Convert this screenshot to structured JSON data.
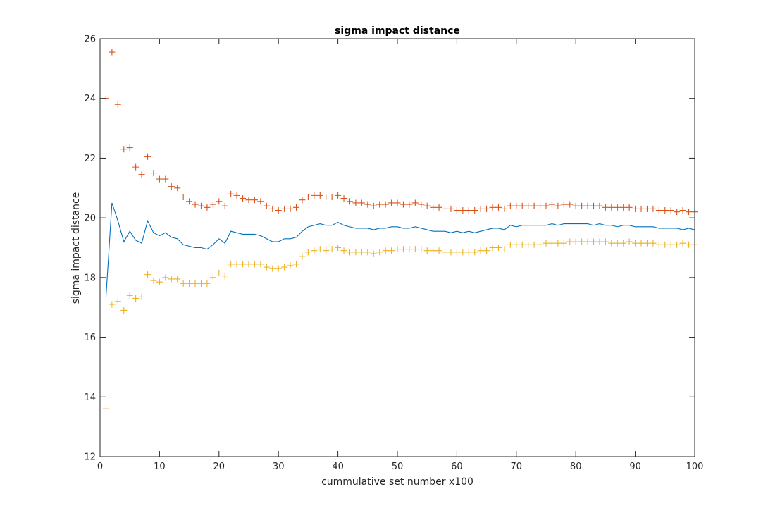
{
  "chart_data": {
    "type": "line",
    "title": "sigma impact distance",
    "xlabel": "cummulative set number x100",
    "ylabel": "sigma impact distance",
    "xlim": [
      0,
      100
    ],
    "ylim": [
      12,
      26
    ],
    "xticks": [
      0,
      10,
      20,
      30,
      40,
      50,
      60,
      70,
      80,
      90,
      100
    ],
    "yticks": [
      12,
      14,
      16,
      18,
      20,
      22,
      24,
      26
    ],
    "grid": false,
    "legend": "none",
    "series": [
      {
        "style": "line",
        "color": "#0072BD",
        "x": [
          1,
          2,
          3,
          4,
          5,
          6,
          7,
          8,
          9,
          10,
          11,
          12,
          13,
          14,
          15,
          16,
          17,
          18,
          19,
          20,
          21,
          22,
          23,
          24,
          25,
          26,
          27,
          28,
          29,
          30,
          31,
          32,
          33,
          34,
          35,
          36,
          37,
          38,
          39,
          40,
          41,
          42,
          43,
          44,
          45,
          46,
          47,
          48,
          49,
          50,
          51,
          52,
          53,
          54,
          55,
          56,
          57,
          58,
          59,
          60,
          61,
          62,
          63,
          64,
          65,
          66,
          67,
          68,
          69,
          70,
          71,
          72,
          73,
          74,
          75,
          76,
          77,
          78,
          79,
          80,
          81,
          82,
          83,
          84,
          85,
          86,
          87,
          88,
          89,
          90,
          91,
          92,
          93,
          94,
          95,
          96,
          97,
          98,
          99,
          100
        ],
        "values": [
          17.35,
          20.5,
          19.9,
          19.2,
          19.55,
          19.25,
          19.15,
          19.9,
          19.5,
          19.4,
          19.5,
          19.35,
          19.3,
          19.1,
          19.05,
          19.0,
          19.0,
          18.95,
          19.1,
          19.3,
          19.15,
          19.55,
          19.5,
          19.45,
          19.45,
          19.45,
          19.4,
          19.3,
          19.2,
          19.2,
          19.3,
          19.3,
          19.35,
          19.55,
          19.7,
          19.75,
          19.8,
          19.75,
          19.75,
          19.85,
          19.75,
          19.7,
          19.65,
          19.65,
          19.65,
          19.6,
          19.65,
          19.65,
          19.7,
          19.7,
          19.65,
          19.65,
          19.7,
          19.65,
          19.6,
          19.55,
          19.55,
          19.55,
          19.5,
          19.55,
          19.5,
          19.55,
          19.5,
          19.55,
          19.6,
          19.65,
          19.65,
          19.6,
          19.75,
          19.7,
          19.75,
          19.75,
          19.75,
          19.75,
          19.75,
          19.8,
          19.75,
          19.8,
          19.8,
          19.8,
          19.8,
          19.8,
          19.75,
          19.8,
          19.75,
          19.75,
          19.7,
          19.75,
          19.75,
          19.7,
          19.7,
          19.7,
          19.7,
          19.65,
          19.65,
          19.65,
          19.65,
          19.6,
          19.65,
          19.6
        ]
      },
      {
        "style": "plus",
        "color": "#D95319",
        "x": [
          1,
          2,
          3,
          4,
          5,
          6,
          7,
          8,
          9,
          10,
          11,
          12,
          13,
          14,
          15,
          16,
          17,
          18,
          19,
          20,
          21,
          22,
          23,
          24,
          25,
          26,
          27,
          28,
          29,
          30,
          31,
          32,
          33,
          34,
          35,
          36,
          37,
          38,
          39,
          40,
          41,
          42,
          43,
          44,
          45,
          46,
          47,
          48,
          49,
          50,
          51,
          52,
          53,
          54,
          55,
          56,
          57,
          58,
          59,
          60,
          61,
          62,
          63,
          64,
          65,
          66,
          67,
          68,
          69,
          70,
          71,
          72,
          73,
          74,
          75,
          76,
          77,
          78,
          79,
          80,
          81,
          82,
          83,
          84,
          85,
          86,
          87,
          88,
          89,
          90,
          91,
          92,
          93,
          94,
          95,
          96,
          97,
          98,
          99,
          100
        ],
        "values": [
          24.0,
          25.55,
          23.8,
          22.3,
          22.35,
          21.7,
          21.45,
          22.05,
          21.5,
          21.3,
          21.3,
          21.05,
          21.0,
          20.7,
          20.55,
          20.45,
          20.4,
          20.35,
          20.45,
          20.55,
          20.4,
          20.8,
          20.75,
          20.65,
          20.6,
          20.6,
          20.55,
          20.4,
          20.3,
          20.25,
          20.3,
          20.3,
          20.35,
          20.6,
          20.7,
          20.75,
          20.75,
          20.7,
          20.7,
          20.75,
          20.65,
          20.55,
          20.5,
          20.5,
          20.45,
          20.4,
          20.45,
          20.45,
          20.5,
          20.5,
          20.45,
          20.45,
          20.5,
          20.45,
          20.4,
          20.35,
          20.35,
          20.3,
          20.3,
          20.25,
          20.25,
          20.25,
          20.25,
          20.3,
          20.3,
          20.35,
          20.35,
          20.3,
          20.4,
          20.4,
          20.4,
          20.4,
          20.4,
          20.4,
          20.4,
          20.45,
          20.4,
          20.45,
          20.45,
          20.4,
          20.4,
          20.4,
          20.4,
          20.4,
          20.35,
          20.35,
          20.35,
          20.35,
          20.35,
          20.3,
          20.3,
          20.3,
          20.3,
          20.25,
          20.25,
          20.25,
          20.2,
          20.25,
          20.2,
          20.2
        ]
      },
      {
        "style": "plus",
        "color": "#EDB120",
        "x": [
          1,
          2,
          3,
          4,
          5,
          6,
          7,
          8,
          9,
          10,
          11,
          12,
          13,
          14,
          15,
          16,
          17,
          18,
          19,
          20,
          21,
          22,
          23,
          24,
          25,
          26,
          27,
          28,
          29,
          30,
          31,
          32,
          33,
          34,
          35,
          36,
          37,
          38,
          39,
          40,
          41,
          42,
          43,
          44,
          45,
          46,
          47,
          48,
          49,
          50,
          51,
          52,
          53,
          54,
          55,
          56,
          57,
          58,
          59,
          60,
          61,
          62,
          63,
          64,
          65,
          66,
          67,
          68,
          69,
          70,
          71,
          72,
          73,
          74,
          75,
          76,
          77,
          78,
          79,
          80,
          81,
          82,
          83,
          84,
          85,
          86,
          87,
          88,
          89,
          90,
          91,
          92,
          93,
          94,
          95,
          96,
          97,
          98,
          99,
          100
        ],
        "values": [
          13.6,
          17.1,
          17.2,
          16.9,
          17.4,
          17.3,
          17.35,
          18.1,
          17.9,
          17.85,
          18.0,
          17.95,
          17.95,
          17.8,
          17.8,
          17.8,
          17.8,
          17.8,
          18.0,
          18.15,
          18.05,
          18.45,
          18.45,
          18.45,
          18.45,
          18.45,
          18.45,
          18.35,
          18.3,
          18.3,
          18.35,
          18.4,
          18.45,
          18.7,
          18.85,
          18.9,
          18.95,
          18.9,
          18.95,
          19.0,
          18.9,
          18.85,
          18.85,
          18.85,
          18.85,
          18.8,
          18.85,
          18.9,
          18.9,
          18.95,
          18.95,
          18.95,
          18.95,
          18.95,
          18.9,
          18.9,
          18.9,
          18.85,
          18.85,
          18.85,
          18.85,
          18.85,
          18.85,
          18.9,
          18.9,
          19.0,
          19.0,
          18.95,
          19.1,
          19.1,
          19.1,
          19.1,
          19.1,
          19.1,
          19.15,
          19.15,
          19.15,
          19.15,
          19.2,
          19.2,
          19.2,
          19.2,
          19.2,
          19.2,
          19.2,
          19.15,
          19.15,
          19.15,
          19.2,
          19.15,
          19.15,
          19.15,
          19.15,
          19.1,
          19.1,
          19.1,
          19.1,
          19.15,
          19.1,
          19.1
        ]
      }
    ]
  }
}
